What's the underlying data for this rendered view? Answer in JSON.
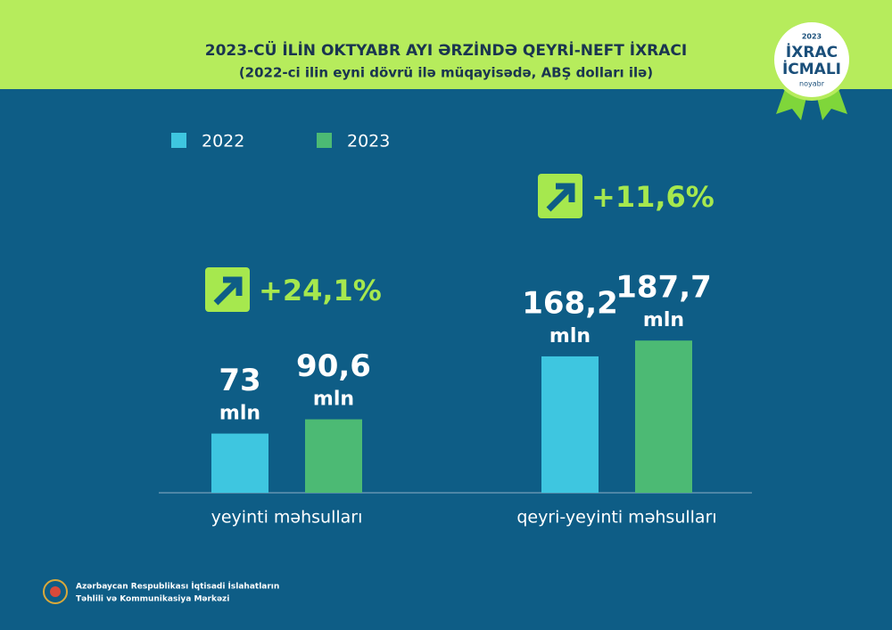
{
  "header": {
    "title": "2023-CÜ İLİN OKTYABR AYI ƏRZİNDƏ QEYRİ-NEFT İXRACI",
    "subtitle": "(2022-ci ilin eyni dövrü ilə müqayisədə, ABŞ dolları ilə)"
  },
  "badge": {
    "year": "2023",
    "line1": "İXRAC",
    "line2": "İCMALI",
    "month": "noyabr"
  },
  "chart_data": {
    "type": "bar",
    "categories": [
      "yeyinti məhsulları",
      "qeyri-yeyinti məhsulları"
    ],
    "series": [
      {
        "name": "2022",
        "color": "#3ec6e0",
        "values": [
          73,
          168.2
        ],
        "value_labels": [
          "73",
          "168,2"
        ]
      },
      {
        "name": "2023",
        "color": "#4cba74",
        "values": [
          90.6,
          187.7
        ],
        "value_labels": [
          "90,6",
          "187,7"
        ]
      }
    ],
    "unit": "mln",
    "changes": [
      24.1,
      11.6
    ],
    "change_labels": [
      "+24,1%",
      "+11,6%"
    ],
    "ylim": [
      0,
      200
    ]
  },
  "footer": {
    "line1": "Azərbaycan Respublikası İqtisadi İslahatların",
    "line2": "Təhlili və Kommunikasiya Mərkəzi"
  }
}
